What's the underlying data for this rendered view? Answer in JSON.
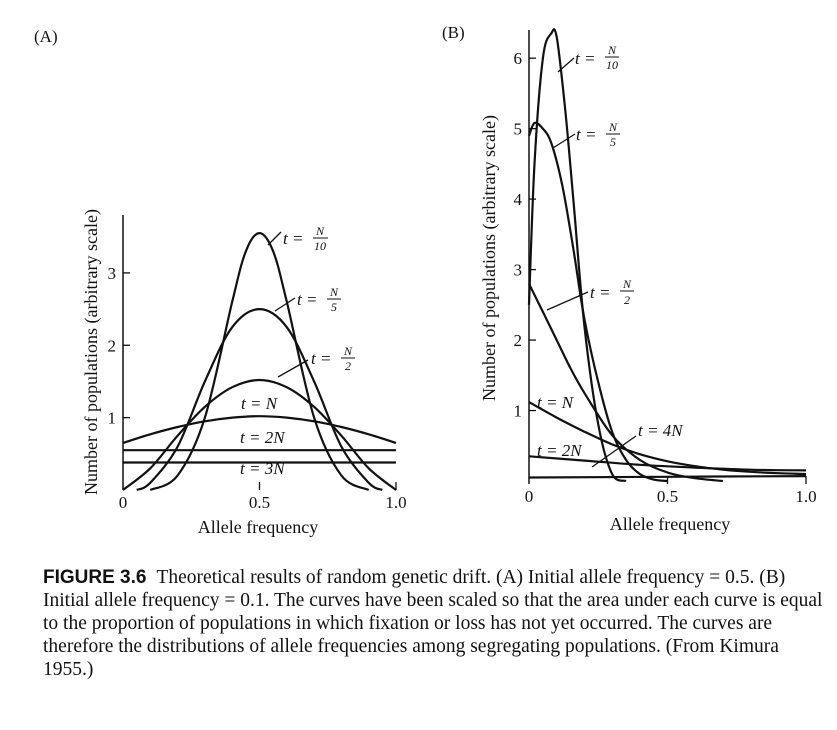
{
  "chart_data": [
    {
      "panel": "(A)",
      "type": "line",
      "xlabel": "Allele frequency",
      "ylabel": "Number of populations (arbitrary scale)",
      "xlim": [
        0,
        1.0
      ],
      "ylim": [
        0,
        3.8
      ],
      "xticks": [
        "0",
        "0.5",
        "1.0"
      ],
      "yticks": [
        "1",
        "2",
        "3"
      ],
      "series": [
        {
          "name": "t = N/10",
          "x": [
            0.1,
            0.2,
            0.3,
            0.4,
            0.45,
            0.5,
            0.55,
            0.6,
            0.7,
            0.8,
            0.9
          ],
          "y": [
            0.0,
            0.2,
            1.0,
            2.6,
            3.3,
            3.55,
            3.3,
            2.6,
            1.0,
            0.2,
            0.0
          ]
        },
        {
          "name": "t = N/5",
          "x": [
            0.05,
            0.1,
            0.2,
            0.3,
            0.4,
            0.5,
            0.6,
            0.7,
            0.8,
            0.9,
            0.95
          ],
          "y": [
            0.0,
            0.1,
            0.6,
            1.5,
            2.25,
            2.5,
            2.25,
            1.5,
            0.6,
            0.1,
            0.0
          ]
        },
        {
          "name": "t = N/2",
          "x": [
            0.0,
            0.1,
            0.2,
            0.3,
            0.4,
            0.5,
            0.6,
            0.7,
            0.8,
            0.9,
            1.0
          ],
          "y": [
            0.0,
            0.3,
            0.75,
            1.15,
            1.42,
            1.52,
            1.42,
            1.15,
            0.75,
            0.3,
            0.0
          ]
        },
        {
          "name": "t = N",
          "x": [
            0.0,
            0.1,
            0.2,
            0.3,
            0.4,
            0.5,
            0.6,
            0.7,
            0.8,
            0.9,
            1.0
          ],
          "y": [
            0.65,
            0.77,
            0.87,
            0.95,
            1.0,
            1.02,
            1.0,
            0.95,
            0.87,
            0.77,
            0.65
          ]
        },
        {
          "name": "t = 2N",
          "x": [
            0.0,
            1.0
          ],
          "y": [
            0.55,
            0.55
          ]
        },
        {
          "name": "t = 3N",
          "x": [
            0.0,
            1.0
          ],
          "y": [
            0.38,
            0.38
          ]
        }
      ]
    },
    {
      "panel": "(B)",
      "type": "line",
      "xlabel": "Allele frequency",
      "ylabel": "Number of populations (arbitrary scale)",
      "xlim": [
        0,
        1.0
      ],
      "ylim": [
        0,
        6.4
      ],
      "xticks": [
        "0",
        "0.5",
        "1.0"
      ],
      "yticks": [
        "1",
        "2",
        "3",
        "4",
        "5",
        "6"
      ],
      "series": [
        {
          "name": "t = N/10",
          "x": [
            0.0,
            0.02,
            0.05,
            0.08,
            0.1,
            0.13,
            0.16,
            0.2,
            0.25,
            0.3,
            0.35
          ],
          "y": [
            2.5,
            4.5,
            6.0,
            6.35,
            6.3,
            5.3,
            4.0,
            2.2,
            0.8,
            0.1,
            0.0
          ]
        },
        {
          "name": "t = N/5",
          "x": [
            0.0,
            0.02,
            0.05,
            0.08,
            0.12,
            0.16,
            0.2,
            0.25,
            0.3,
            0.35,
            0.4,
            0.45,
            0.5
          ],
          "y": [
            4.9,
            5.08,
            5.0,
            4.8,
            4.2,
            3.3,
            2.3,
            1.4,
            0.7,
            0.3,
            0.1,
            0.02,
            0.0
          ]
        },
        {
          "name": "t = N/2",
          "x": [
            0.0,
            0.05,
            0.1,
            0.15,
            0.2,
            0.3,
            0.4,
            0.5,
            0.6,
            0.7
          ],
          "y": [
            2.8,
            2.4,
            2.0,
            1.6,
            1.25,
            0.65,
            0.3,
            0.12,
            0.04,
            0.0
          ]
        },
        {
          "name": "t = N",
          "x": [
            0.0,
            0.1,
            0.2,
            0.3,
            0.4,
            0.5,
            0.6,
            0.7,
            0.8,
            0.9,
            1.0
          ],
          "y": [
            1.12,
            0.9,
            0.7,
            0.52,
            0.38,
            0.28,
            0.21,
            0.16,
            0.13,
            0.11,
            0.1
          ]
        },
        {
          "name": "t = 2N",
          "x": [
            0.0,
            0.2,
            0.4,
            0.6,
            0.8,
            1.0
          ],
          "y": [
            0.35,
            0.29,
            0.23,
            0.19,
            0.16,
            0.15
          ]
        },
        {
          "name": "t = 4N",
          "x": [
            0.0,
            0.5,
            1.0
          ],
          "y": [
            0.05,
            0.06,
            0.07
          ]
        }
      ]
    }
  ],
  "curve_labels": {
    "a_n10": {
      "t": "t = ",
      "num": "N",
      "den": "10"
    },
    "a_n5": {
      "t": "t = ",
      "num": "N",
      "den": "5"
    },
    "a_n2": {
      "t": "t = ",
      "num": "N",
      "den": "2"
    },
    "a_n": "t = N",
    "a_2n": "t = 2N",
    "a_3n": "t = 3N",
    "b_n10": {
      "t": "t = ",
      "num": "N",
      "den": "10"
    },
    "b_n5": {
      "t": "t = ",
      "num": "N",
      "den": "5"
    },
    "b_n2": {
      "t": "t = ",
      "num": "N",
      "den": "2"
    },
    "b_n": "t = N",
    "b_4n": "t = 4N",
    "b_2n": "t = 2N"
  },
  "caption": {
    "figure_number": "FIGURE 3.6",
    "text": "Theoretical results of random genetic drift. (A) Initial allele frequency = 0.5. (B) Initial allele frequency = 0.1. The curves have been scaled so that the area under each curve is equal to the proportion of populations in which fixation or loss has not yet occurred. The curves are therefore the distributions of allele frequencies among segregating populations. (From Kimura 1955.)"
  }
}
